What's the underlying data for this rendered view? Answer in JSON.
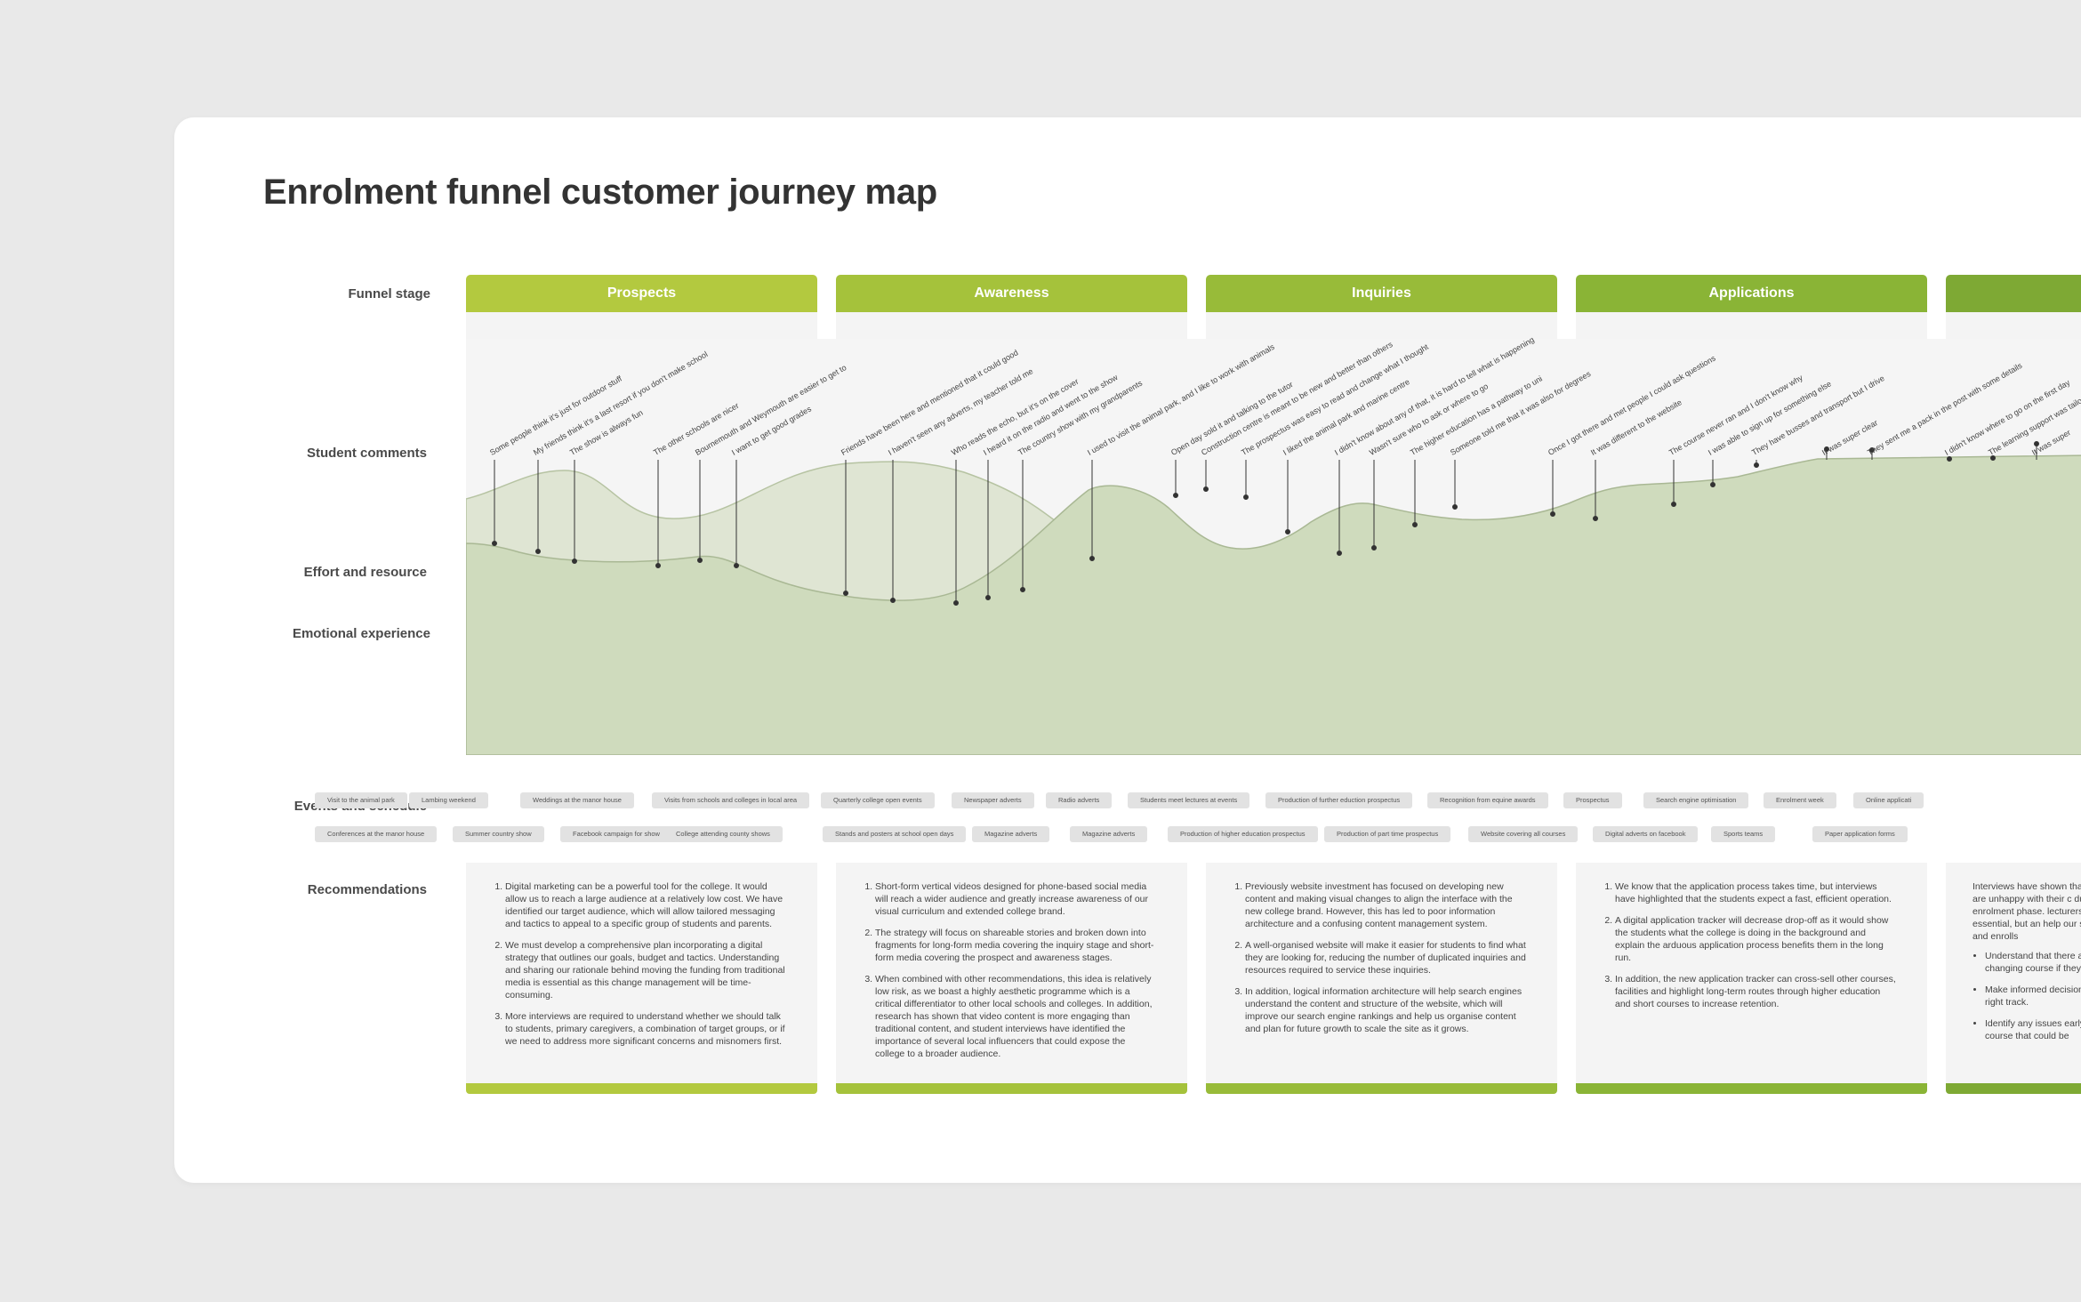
{
  "title": "Enrolment funnel customer journey map",
  "row_labels": {
    "funnel_stage": "Funnel stage",
    "student_comments": "Student comments",
    "effort": "Effort and resource",
    "emotional": "Emotional experience",
    "events": "Events and schedule",
    "recommendations": "Recommendations"
  },
  "stages": [
    {
      "name": "Prospects",
      "color": "#b3c93f"
    },
    {
      "name": "Awareness",
      "color": "#a5c23b"
    },
    {
      "name": "Inquiries",
      "color": "#98bb39"
    },
    {
      "name": "Applications",
      "color": "#8ab436"
    },
    {
      "name": "",
      "color": "#7ea934"
    }
  ],
  "colors": {
    "effort_fill": "#dfe5d3",
    "emotion_fill": "#cfdbbd",
    "curve_stroke": "#a9b894",
    "marker": "#333333"
  },
  "comments": [
    "Some people think it's just for outdoor stuff",
    "My friends think it's a last resort if you don't make school",
    "The show is always fun",
    "The other schools are nicer",
    "Bournemouth and Weymouth are easier to get to",
    "I want to get good grades",
    "Friends have been here and mentioned that it could good",
    "I haven't seen any adverts, my teacher told me",
    "Who reads the echo, but it's on the cover",
    "I heard it on the radio and went to the show",
    "The country show with my grandparents",
    "I used to visit the animal park, and I like to work with animals",
    "Open day sold it and talking to the tutor",
    "Construction centre is meant to be new and better than others",
    "The prospectus was easy to read and change what I thought",
    "I liked the animal park and marine centre",
    "I didn't know about any of that, it is hard to tell what is happening",
    "Wasn't sure who to ask or where to go",
    "The higher education has a pathway to uni",
    "Someone told me that it was also for degrees",
    "Once I got there and met people I could ask questions",
    "It was different to the website",
    "The course never ran and I don't know why",
    "I was able to sign up for something else",
    "They have busses and transport but I drive",
    "It was super clear",
    "They sent me a pack in the post with some details",
    "I didn't know where to go on the first day",
    "The learning support was tailored",
    "It was super"
  ],
  "events_row1": [
    "Visit to the animal park",
    "Lambing weekend",
    "Weddings at the manor house",
    "Visits from schools and colleges in local area",
    "Quarterly college open events",
    "Newspaper adverts",
    "Radio adverts",
    "Students meet lectures at events",
    "Production of further eduction prospectus",
    "Recognition from equine awards",
    "Prospectus",
    "Search engine optimisation",
    "Enrolment week",
    "Online applicati"
  ],
  "events_row2": [
    "Conferences at the manor house",
    "Summer country show",
    "Facebook campaign for show",
    "College attending county shows",
    "Stands and posters at school open days",
    "Magazine adverts",
    "Magazine adverts",
    "Production of higher education prospectus",
    "Production of part time prospectus",
    "Website covering all courses",
    "Digital adverts on facebook",
    "Sports teams",
    "Paper application forms"
  ],
  "recommendations": [
    {
      "type": "ol",
      "items": [
        "Digital marketing can be a powerful tool for the college. It would allow us to reach a large audience at a relatively low cost. We have identified our target audience, which will allow tailored messaging and tactics to appeal to a specific group of students and parents.",
        "We must develop a comprehensive plan incorporating a digital strategy that outlines our goals, budget and tactics. Understanding and sharing our rationale behind moving the funding from traditional media is essential as this change management will be time-consuming.",
        "More interviews are required to understand whether we should talk to students, primary caregivers, a combination of target groups, or if we need to address more significant concerns and misnomers first."
      ]
    },
    {
      "type": "ol",
      "items": [
        "Short-form vertical videos designed for phone-based social media will reach a wider audience and greatly increase awareness of our visual curriculum and extended college brand.",
        "The strategy will focus on shareable stories and broken down into fragments for long-form media covering the inquiry stage and short-form media covering the prospect and awareness stages.",
        " When combined with other recommendations, this idea is relatively low risk, as we boast a highly aesthetic programme which is a critical differentiator to other local schools and colleges. In addition, research has shown that video content is more engaging than traditional content, and student interviews have identified the importance of several local influencers that could expose the college to a broader audience."
      ]
    },
    {
      "type": "ol",
      "items": [
        "Previously website investment has focused on developing new content and making visual changes to align the interface with the new college brand. However, this has led to poor information architecture and a confusing content management system.",
        "A well-organised website will make it easier for students to find what they are looking for, reducing the number of duplicated inquiries and resources required to service these inquiries.",
        "In addition, logical information architecture will help search engines understand the content and structure of the website, which will improve our search engine rankings and help us organise content and plan for future growth to scale the site as it grows."
      ]
    },
    {
      "type": "ol",
      "items": [
        "We know that the application process takes time, but interviews have highlighted that the students expect a fast, efficient operation.",
        "A digital application tracker will decrease drop-off as it would show the students what the college is doing in the background and explain the arduous application process benefits them in the long run.",
        "In addition, the new application tracker can cross-sell other courses, facilities and highlight long-term routes through higher education and short courses to increase retention."
      ]
    },
    {
      "type": "ul",
      "intro": "Interviews have shown that s they are unhappy with their c during the enrolment phase. lecturers is essential, but an help our students and enrolls",
      "items": [
        "Understand that there are changing course if they ha",
        "Make informed decisions the right track.",
        "Identify any issues early t in a course that could be"
      ]
    }
  ]
}
